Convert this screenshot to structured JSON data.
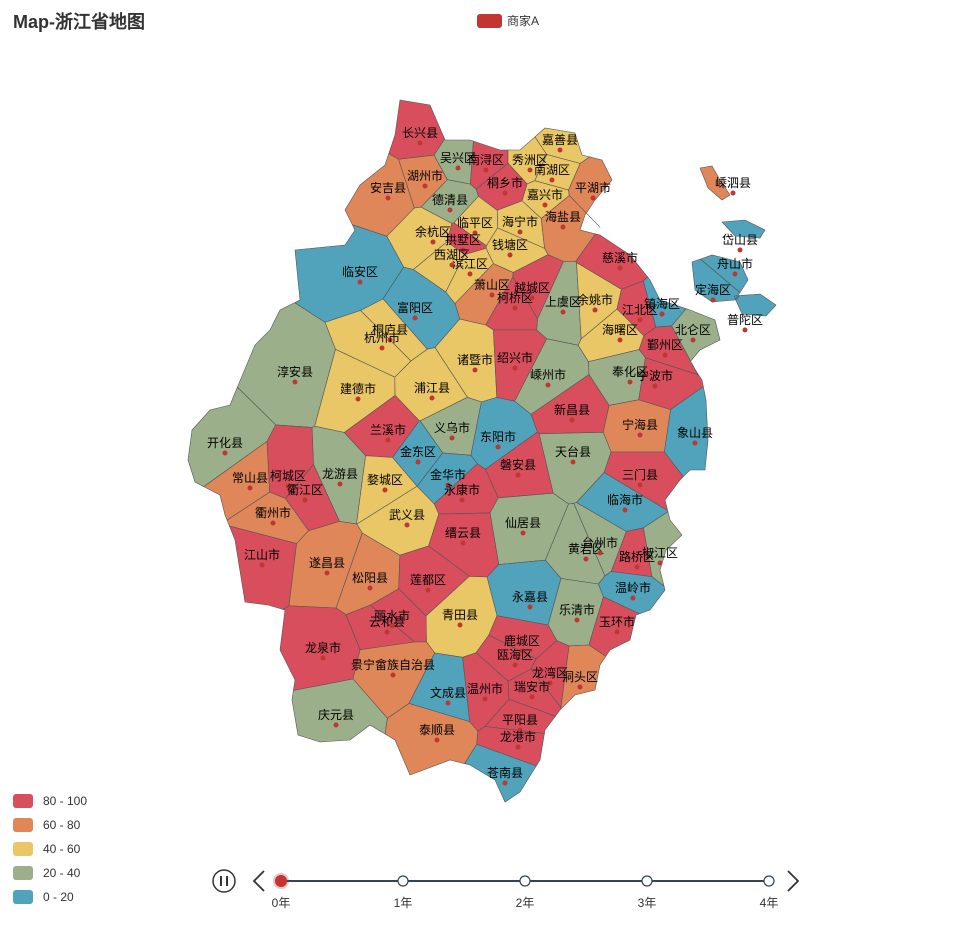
{
  "title": "Map-浙江省地图",
  "legend": {
    "name": "商家A",
    "color": "#c23531"
  },
  "visual_map": {
    "pieces": [
      {
        "min": 80,
        "max": 100,
        "label": "80 - 100",
        "color": "#d94e5d"
      },
      {
        "min": 60,
        "max": 80,
        "label": "60 - 80",
        "color": "#e0875a"
      },
      {
        "min": 40,
        "max": 60,
        "label": "40 - 60",
        "color": "#e9c766"
      },
      {
        "min": 20,
        "max": 40,
        "label": "20 - 40",
        "color": "#9bb08a"
      },
      {
        "min": 0,
        "max": 20,
        "label": "0 - 20",
        "color": "#50a3ba"
      }
    ]
  },
  "regions": [
    {
      "name": "长兴县",
      "value": 90
    },
    {
      "name": "吴兴区",
      "value": 30
    },
    {
      "name": "南浔区",
      "value": 90
    },
    {
      "name": "嘉善县",
      "value": 50
    },
    {
      "name": "秀洲区",
      "value": 50
    },
    {
      "name": "南湖区",
      "value": 50
    },
    {
      "name": "湖州市",
      "value": 70
    },
    {
      "name": "安吉县",
      "value": 70
    },
    {
      "name": "桐乡市",
      "value": 90
    },
    {
      "name": "嘉兴市",
      "value": 50
    },
    {
      "name": "平湖市",
      "value": 70
    },
    {
      "name": "德清县",
      "value": 30
    },
    {
      "name": "海宁市",
      "value": 50
    },
    {
      "name": "海盐县",
      "value": 70
    },
    {
      "name": "临平区",
      "value": 50
    },
    {
      "name": "余杭区",
      "value": 50
    },
    {
      "name": "拱墅区",
      "value": 90
    },
    {
      "name": "钱塘区",
      "value": 50
    },
    {
      "name": "西湖区",
      "value": 50
    },
    {
      "name": "滨江区",
      "value": 50
    },
    {
      "name": "萧山区",
      "value": 70
    },
    {
      "name": "越城区",
      "value": 90
    },
    {
      "name": "柯桥区",
      "value": 90
    },
    {
      "name": "临安区",
      "value": 10
    },
    {
      "name": "富阳区",
      "value": 10
    },
    {
      "name": "桐庐县",
      "value": 50
    },
    {
      "name": "杭州市",
      "value": 50
    },
    {
      "name": "淳安县",
      "value": 30
    },
    {
      "name": "建德市",
      "value": 50
    },
    {
      "name": "诸暨市",
      "value": 50
    },
    {
      "name": "绍兴市",
      "value": 90
    },
    {
      "name": "嵊州市",
      "value": 30
    },
    {
      "name": "上虞区",
      "value": 30
    },
    {
      "name": "余姚市",
      "value": 50
    },
    {
      "name": "慈溪市",
      "value": 90
    },
    {
      "name": "江北区",
      "value": 90
    },
    {
      "name": "镇海区",
      "value": 10
    },
    {
      "name": "海曙区",
      "value": 50
    },
    {
      "name": "鄞州区",
      "value": 90
    },
    {
      "name": "北仑区",
      "value": 30
    },
    {
      "name": "奉化区",
      "value": 30
    },
    {
      "name": "宁波市",
      "value": 90
    },
    {
      "name": "新昌县",
      "value": 90
    },
    {
      "name": "宁海县",
      "value": 70
    },
    {
      "name": "象山县",
      "value": 10
    },
    {
      "name": "浦江县",
      "value": 50
    },
    {
      "name": "义乌市",
      "value": 30
    },
    {
      "name": "东阳市",
      "value": 10
    },
    {
      "name": "兰溪市",
      "value": 90
    },
    {
      "name": "金东区",
      "value": 10
    },
    {
      "name": "金华市",
      "value": 10
    },
    {
      "name": "磐安县",
      "value": 90
    },
    {
      "name": "天台县",
      "value": 30
    },
    {
      "name": "三门县",
      "value": 90
    },
    {
      "name": "临海市",
      "value": 10
    },
    {
      "name": "开化县",
      "value": 30
    },
    {
      "name": "常山县",
      "value": 70
    },
    {
      "name": "柯城区",
      "value": 90
    },
    {
      "name": "衢江区",
      "value": 90
    },
    {
      "name": "龙游县",
      "value": 30
    },
    {
      "name": "婺城区",
      "value": 50
    },
    {
      "name": "永康市",
      "value": 90
    },
    {
      "name": "衢州市",
      "value": 70
    },
    {
      "name": "武义县",
      "value": 50
    },
    {
      "name": "缙云县",
      "value": 90
    },
    {
      "name": "仙居县",
      "value": 30
    },
    {
      "name": "黄岩区",
      "value": 30
    },
    {
      "name": "椒江区",
      "value": 30
    },
    {
      "name": "路桥区",
      "value": 90
    },
    {
      "name": "台州市",
      "value": 30
    },
    {
      "name": "江山市",
      "value": 90
    },
    {
      "name": "遂昌县",
      "value": 70
    },
    {
      "name": "松阳县",
      "value": 70
    },
    {
      "name": "莲都区",
      "value": 90
    },
    {
      "name": "温岭市",
      "value": 10
    },
    {
      "name": "永嘉县",
      "value": 10
    },
    {
      "name": "乐清市",
      "value": 30
    },
    {
      "name": "玉环市",
      "value": 90
    },
    {
      "name": "青田县",
      "value": 50
    },
    {
      "name": "云和县",
      "value": 90
    },
    {
      "name": "丽水市",
      "value": 90
    },
    {
      "name": "龙泉市",
      "value": 90
    },
    {
      "name": "景宁畲族自治县",
      "value": 70
    },
    {
      "name": "鹿城区",
      "value": 90
    },
    {
      "name": "瓯海区",
      "value": 90
    },
    {
      "name": "龙湾区",
      "value": 90
    },
    {
      "name": "洞头区",
      "value": 70
    },
    {
      "name": "温州市",
      "value": 90
    },
    {
      "name": "瑞安市",
      "value": 90
    },
    {
      "name": "文成县",
      "value": 10
    },
    {
      "name": "庆元县",
      "value": 30
    },
    {
      "name": "泰顺县",
      "value": 70
    },
    {
      "name": "平阳县",
      "value": 90
    },
    {
      "name": "龙港市",
      "value": 90
    },
    {
      "name": "苍南县",
      "value": 10
    },
    {
      "name": "嵊泗县",
      "value": 70
    },
    {
      "name": "岱山县",
      "value": 10
    },
    {
      "name": "舟山市",
      "value": 10
    },
    {
      "name": "定海区",
      "value": 10
    },
    {
      "name": "普陀区",
      "value": 10
    }
  ],
  "timeline": {
    "labels": [
      "0年",
      "1年",
      "2年",
      "3年",
      "4年"
    ]
  }
}
